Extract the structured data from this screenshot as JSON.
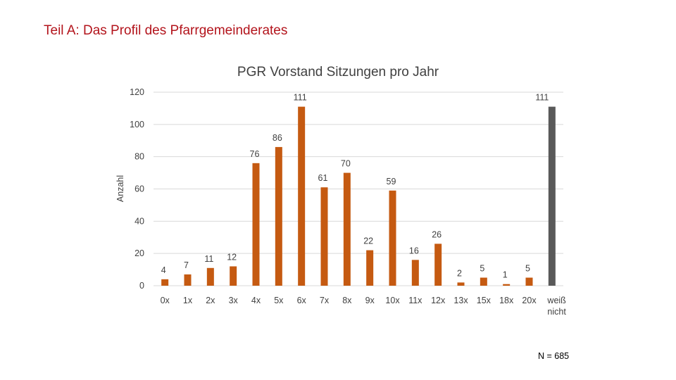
{
  "slide": {
    "title": "Teil A: Das Profil des Pfarrgemeinderates",
    "note": "N = 685"
  },
  "colors": {
    "bar": "#c55a11",
    "highlight": "#595959",
    "grid": "#d9d9d9",
    "text": "#404040",
    "title_red": "#b3141c"
  },
  "chart_data": {
    "type": "bar",
    "title": "PGR Vorstand Sitzungen pro Jahr",
    "xlabel": "",
    "ylabel": "Anzahl",
    "ylim": [
      0,
      120
    ],
    "yticks": [
      0,
      20,
      40,
      60,
      80,
      100,
      120
    ],
    "grid": true,
    "categories": [
      "0x",
      "1x",
      "2x",
      "3x",
      "4x",
      "5x",
      "6x",
      "7x",
      "8x",
      "9x",
      "10x",
      "11x",
      "12x",
      "13x",
      "15x",
      "18x",
      "20x",
      "weiß nicht"
    ],
    "values": [
      4,
      7,
      11,
      12,
      76,
      86,
      111,
      61,
      70,
      22,
      59,
      16,
      26,
      2,
      5,
      1,
      5,
      111
    ],
    "highlight_categories": [
      "weiß nicht"
    ]
  }
}
